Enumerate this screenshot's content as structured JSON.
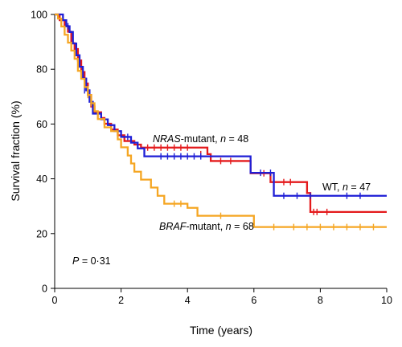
{
  "chart_data": {
    "type": "line",
    "chart_subtype": "kaplan-meier survival curves",
    "xlabel": "Time (years)",
    "ylabel": "Survival fraction (%)",
    "xlim": [
      0,
      10
    ],
    "ylim": [
      0,
      100
    ],
    "x_ticks": [
      0,
      2,
      4,
      6,
      8,
      10
    ],
    "y_ticks": [
      0,
      20,
      40,
      60,
      80,
      100
    ],
    "grid": false,
    "annotations": [
      {
        "id": "pvalue",
        "text_italic": "P",
        "text_rest": " = 0·31"
      },
      {
        "id": "nras",
        "series": "NRAS",
        "text_italic": "NRAS",
        "text_rest": "-mutant, ",
        "n_label": "n",
        "n_value": " = 48"
      },
      {
        "id": "wt",
        "series": "WT",
        "text_italic": "",
        "text_rest": "WT, ",
        "n_label": "n",
        "n_value": " = 47"
      },
      {
        "id": "braf",
        "series": "BRAF",
        "text_italic": "BRAF",
        "text_rest": "-mutant, ",
        "n_label": "n",
        "n_value": " = 68"
      }
    ],
    "series": [
      {
        "name": "NRAS-mutant",
        "key": "NRAS",
        "color": "#e41a1c",
        "steps": [
          [
            0,
            100
          ],
          [
            0.15,
            97.9
          ],
          [
            0.3,
            95.8
          ],
          [
            0.4,
            93.7
          ],
          [
            0.5,
            89.5
          ],
          [
            0.6,
            87.4
          ],
          [
            0.7,
            83.2
          ],
          [
            0.8,
            79
          ],
          [
            0.9,
            74.8
          ],
          [
            1.0,
            70.6
          ],
          [
            1.1,
            66.4
          ],
          [
            1.2,
            64.3
          ],
          [
            1.4,
            62.2
          ],
          [
            1.5,
            60.1
          ],
          [
            1.7,
            58
          ],
          [
            1.9,
            55.9
          ],
          [
            2.1,
            53.8
          ],
          [
            2.4,
            52.5
          ],
          [
            2.6,
            51.4
          ],
          [
            4.6,
            49
          ],
          [
            4.7,
            46.5
          ],
          [
            5.9,
            42
          ],
          [
            6.5,
            38.8
          ],
          [
            7.6,
            34.8
          ],
          [
            7.7,
            27.9
          ],
          [
            10,
            27.9
          ]
        ],
        "censors": [
          [
            2.8,
            51.4
          ],
          [
            3.0,
            51.4
          ],
          [
            3.2,
            51.4
          ],
          [
            3.4,
            51.4
          ],
          [
            3.6,
            51.4
          ],
          [
            3.8,
            51.4
          ],
          [
            4.0,
            51.4
          ],
          [
            4.4,
            49
          ],
          [
            5.0,
            46.5
          ],
          [
            5.3,
            46.5
          ],
          [
            6.3,
            42
          ],
          [
            6.9,
            38.8
          ],
          [
            7.1,
            38.8
          ],
          [
            7.8,
            27.9
          ],
          [
            7.9,
            27.9
          ],
          [
            8.2,
            27.9
          ]
        ]
      },
      {
        "name": "WT",
        "key": "WT",
        "color": "#1f1fd6",
        "steps": [
          [
            0,
            100
          ],
          [
            0.25,
            97.9
          ],
          [
            0.35,
            95.7
          ],
          [
            0.45,
            93.6
          ],
          [
            0.55,
            89.4
          ],
          [
            0.65,
            85.1
          ],
          [
            0.75,
            80.9
          ],
          [
            0.85,
            76.6
          ],
          [
            0.95,
            72.3
          ],
          [
            1.05,
            68.1
          ],
          [
            1.15,
            63.8
          ],
          [
            1.4,
            61.7
          ],
          [
            1.6,
            59.6
          ],
          [
            1.8,
            57.4
          ],
          [
            2.0,
            55.3
          ],
          [
            2.3,
            53.2
          ],
          [
            2.5,
            51.1
          ],
          [
            2.7,
            48.2
          ],
          [
            5.9,
            42.2
          ],
          [
            6.6,
            33.8
          ],
          [
            10,
            33.8
          ]
        ],
        "censors": [
          [
            0.4,
            95.7
          ],
          [
            0.9,
            72.3
          ],
          [
            1.1,
            68.1
          ],
          [
            2.2,
            55.3
          ],
          [
            3.2,
            48.2
          ],
          [
            3.4,
            48.2
          ],
          [
            3.6,
            48.2
          ],
          [
            3.8,
            48.2
          ],
          [
            4.0,
            48.2
          ],
          [
            4.2,
            48.2
          ],
          [
            4.4,
            48.2
          ],
          [
            6.2,
            42.2
          ],
          [
            6.5,
            42.2
          ],
          [
            6.9,
            33.8
          ],
          [
            7.3,
            33.8
          ],
          [
            7.7,
            33.8
          ],
          [
            8.8,
            33.8
          ],
          [
            9.2,
            33.8
          ]
        ]
      },
      {
        "name": "BRAF-mutant",
        "key": "BRAF",
        "color": "#f5a623",
        "steps": [
          [
            0,
            100
          ],
          [
            0.1,
            98.5
          ],
          [
            0.2,
            95.6
          ],
          [
            0.3,
            92.6
          ],
          [
            0.4,
            89.7
          ],
          [
            0.5,
            86.8
          ],
          [
            0.6,
            83.8
          ],
          [
            0.7,
            79.4
          ],
          [
            0.8,
            76.5
          ],
          [
            0.9,
            73.5
          ],
          [
            1.0,
            70.6
          ],
          [
            1.1,
            67.6
          ],
          [
            1.2,
            64.7
          ],
          [
            1.3,
            61.8
          ],
          [
            1.5,
            58.8
          ],
          [
            1.7,
            57.4
          ],
          [
            1.9,
            54.4
          ],
          [
            2.0,
            51.5
          ],
          [
            2.2,
            48.5
          ],
          [
            2.3,
            45.6
          ],
          [
            2.4,
            42.6
          ],
          [
            2.6,
            39.7
          ],
          [
            2.9,
            36.8
          ],
          [
            3.1,
            33.8
          ],
          [
            3.3,
            30.9
          ],
          [
            4.0,
            29.4
          ],
          [
            4.3,
            26.5
          ],
          [
            6.0,
            22.4
          ],
          [
            10,
            22.4
          ]
        ],
        "censors": [
          [
            1.0,
            70.6
          ],
          [
            1.1,
            67.6
          ],
          [
            3.6,
            30.9
          ],
          [
            3.8,
            30.9
          ],
          [
            5.0,
            26.5
          ],
          [
            6.6,
            22.4
          ],
          [
            7.2,
            22.4
          ],
          [
            7.6,
            22.4
          ],
          [
            8.0,
            22.4
          ],
          [
            8.4,
            22.4
          ],
          [
            8.8,
            22.4
          ],
          [
            9.2,
            22.4
          ],
          [
            9.6,
            22.4
          ]
        ]
      }
    ]
  }
}
